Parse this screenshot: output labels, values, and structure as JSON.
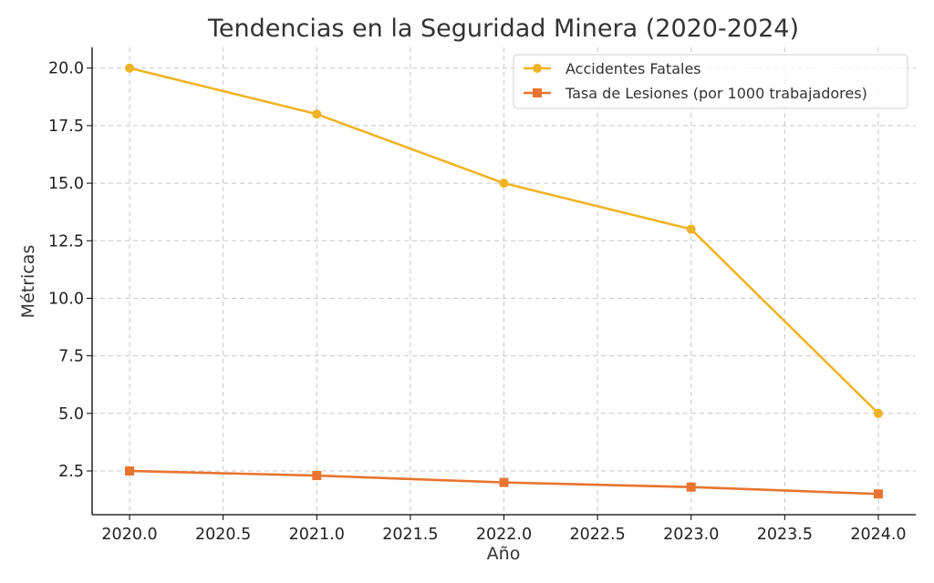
{
  "chart_data": {
    "type": "line",
    "title": "Tendencias en la Seguridad Minera (2020-2024)",
    "xlabel": "Año",
    "ylabel": "Métricas",
    "x": [
      2020,
      2021,
      2022,
      2023,
      2024
    ],
    "xlim": [
      2019.8,
      2024.2
    ],
    "ylim": [
      0.6,
      20.9
    ],
    "xticks": [
      "2020.0",
      "2020.5",
      "2021.0",
      "2021.5",
      "2022.0",
      "2022.5",
      "2023.0",
      "2023.5",
      "2024.0"
    ],
    "yticks": [
      "2.5",
      "5.0",
      "7.5",
      "10.0",
      "12.5",
      "15.0",
      "17.5",
      "20.0"
    ],
    "grid": true,
    "legend_position": "top-right",
    "series": [
      {
        "name": "Accidentes Fatales",
        "values": [
          20,
          18,
          15,
          13,
          5
        ],
        "color": "#f0b323",
        "marker": "circle"
      },
      {
        "name": "Tasa de Lesiones (por 1000 trabajadores)",
        "values": [
          2.5,
          2.3,
          2.0,
          1.8,
          1.5
        ],
        "color": "#e8742f",
        "marker": "square"
      }
    ]
  }
}
